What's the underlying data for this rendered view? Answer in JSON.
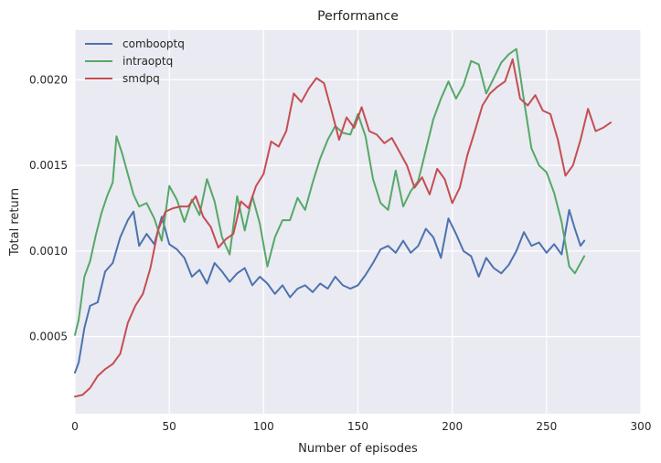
{
  "chart_data": {
    "type": "line",
    "title": "Performance",
    "xlabel": "Number of episodes",
    "ylabel": "Total return",
    "xlim": [
      0,
      300
    ],
    "ylim": [
      5e-05,
      0.00229
    ],
    "xticks": [
      0,
      50,
      100,
      150,
      200,
      250,
      300
    ],
    "xtick_labels": [
      "0",
      "50",
      "100",
      "150",
      "200",
      "250",
      "300"
    ],
    "yticks": [
      0.0005,
      0.001,
      0.0015,
      0.002
    ],
    "ytick_labels": [
      "0.0005",
      "0.0010",
      "0.0015",
      "0.0020"
    ],
    "grid": true,
    "legend_position": "top-left",
    "background_color": "#eaeaf2",
    "series": [
      {
        "name": "combooptq",
        "color": "#4c72b0",
        "x": [
          0,
          2,
          5,
          8,
          12,
          16,
          20,
          24,
          28,
          31,
          34,
          38,
          42,
          46,
          50,
          54,
          58,
          62,
          66,
          70,
          74,
          78,
          82,
          86,
          90,
          94,
          98,
          102,
          106,
          110,
          114,
          118,
          122,
          126,
          130,
          134,
          138,
          142,
          146,
          150,
          154,
          158,
          162,
          166,
          170,
          174,
          178,
          182,
          186,
          190,
          194,
          198,
          202,
          206,
          210,
          214,
          218,
          222,
          226,
          230,
          234,
          238,
          242,
          246,
          250,
          254,
          258,
          262,
          265,
          268,
          270
        ],
        "y": [
          0.00029,
          0.00035,
          0.00055,
          0.00068,
          0.0007,
          0.00088,
          0.00093,
          0.00108,
          0.00118,
          0.00123,
          0.00103,
          0.0011,
          0.00104,
          0.0012,
          0.00104,
          0.00101,
          0.00096,
          0.00085,
          0.00089,
          0.00081,
          0.00093,
          0.00088,
          0.00082,
          0.00087,
          0.0009,
          0.0008,
          0.00085,
          0.00081,
          0.00075,
          0.0008,
          0.00073,
          0.00078,
          0.0008,
          0.00076,
          0.00081,
          0.00078,
          0.00085,
          0.0008,
          0.00078,
          0.0008,
          0.00086,
          0.00093,
          0.00101,
          0.00103,
          0.00099,
          0.00106,
          0.00099,
          0.00103,
          0.00113,
          0.00108,
          0.00096,
          0.00119,
          0.0011,
          0.001,
          0.00097,
          0.00085,
          0.00096,
          0.0009,
          0.00087,
          0.00092,
          0.001,
          0.00111,
          0.00103,
          0.00105,
          0.00099,
          0.00104,
          0.00098,
          0.00124,
          0.00113,
          0.00103,
          0.00106
        ]
      },
      {
        "name": "intraoptq",
        "color": "#55a868",
        "x": [
          0,
          2,
          5,
          8,
          11,
          14,
          17,
          20,
          22,
          25,
          28,
          31,
          34,
          38,
          42,
          46,
          50,
          54,
          58,
          62,
          66,
          70,
          74,
          78,
          82,
          86,
          90,
          94,
          98,
          102,
          106,
          110,
          114,
          118,
          122,
          126,
          130,
          134,
          138,
          142,
          146,
          150,
          154,
          158,
          162,
          166,
          170,
          174,
          178,
          182,
          186,
          190,
          194,
          198,
          202,
          206,
          210,
          214,
          218,
          222,
          226,
          230,
          234,
          238,
          242,
          246,
          250,
          254,
          258,
          262,
          265,
          268,
          270
        ],
        "y": [
          0.00051,
          0.0006,
          0.00085,
          0.00094,
          0.00109,
          0.00122,
          0.00132,
          0.0014,
          0.00167,
          0.00157,
          0.00145,
          0.00133,
          0.00126,
          0.00128,
          0.00119,
          0.00106,
          0.00138,
          0.0013,
          0.00117,
          0.0013,
          0.00121,
          0.00142,
          0.00129,
          0.00108,
          0.00098,
          0.00132,
          0.00112,
          0.00132,
          0.00116,
          0.00091,
          0.00108,
          0.00118,
          0.00118,
          0.00131,
          0.00124,
          0.0014,
          0.00154,
          0.00165,
          0.00173,
          0.00169,
          0.00168,
          0.0018,
          0.00167,
          0.00142,
          0.00128,
          0.00124,
          0.00147,
          0.00126,
          0.00135,
          0.00141,
          0.00159,
          0.00177,
          0.00189,
          0.00199,
          0.00189,
          0.00197,
          0.00211,
          0.00209,
          0.00192,
          0.00201,
          0.0021,
          0.00215,
          0.00218,
          0.00188,
          0.0016,
          0.0015,
          0.00146,
          0.00134,
          0.00117,
          0.00091,
          0.00087,
          0.00093,
          0.00097
        ]
      },
      {
        "name": "smdpq",
        "color": "#c44e52",
        "x": [
          0,
          4,
          8,
          12,
          16,
          20,
          24,
          28,
          32,
          36,
          40,
          44,
          48,
          52,
          56,
          60,
          64,
          68,
          72,
          76,
          80,
          84,
          88,
          92,
          96,
          100,
          104,
          108,
          112,
          116,
          120,
          124,
          128,
          132,
          136,
          140,
          144,
          148,
          152,
          156,
          160,
          164,
          168,
          172,
          176,
          180,
          184,
          188,
          192,
          196,
          200,
          204,
          208,
          212,
          216,
          220,
          224,
          228,
          232,
          236,
          240,
          244,
          248,
          252,
          256,
          260,
          264,
          268,
          272,
          276,
          280,
          284
        ],
        "y": [
          0.00015,
          0.00016,
          0.0002,
          0.00027,
          0.00031,
          0.00034,
          0.0004,
          0.00058,
          0.00068,
          0.00075,
          0.0009,
          0.00112,
          0.00123,
          0.00125,
          0.00126,
          0.00126,
          0.00132,
          0.0012,
          0.00114,
          0.00102,
          0.00107,
          0.0011,
          0.00129,
          0.00125,
          0.00138,
          0.00145,
          0.00164,
          0.00161,
          0.0017,
          0.00192,
          0.00187,
          0.00195,
          0.00201,
          0.00198,
          0.00182,
          0.00165,
          0.00178,
          0.00172,
          0.00184,
          0.0017,
          0.00168,
          0.00163,
          0.00166,
          0.00158,
          0.0015,
          0.00137,
          0.00143,
          0.00133,
          0.00148,
          0.00142,
          0.00128,
          0.00137,
          0.00156,
          0.0017,
          0.00185,
          0.00192,
          0.00196,
          0.00199,
          0.00212,
          0.00189,
          0.00185,
          0.00191,
          0.00182,
          0.0018,
          0.00165,
          0.00144,
          0.0015,
          0.00165,
          0.00183,
          0.0017,
          0.00172,
          0.00175
        ]
      }
    ]
  }
}
